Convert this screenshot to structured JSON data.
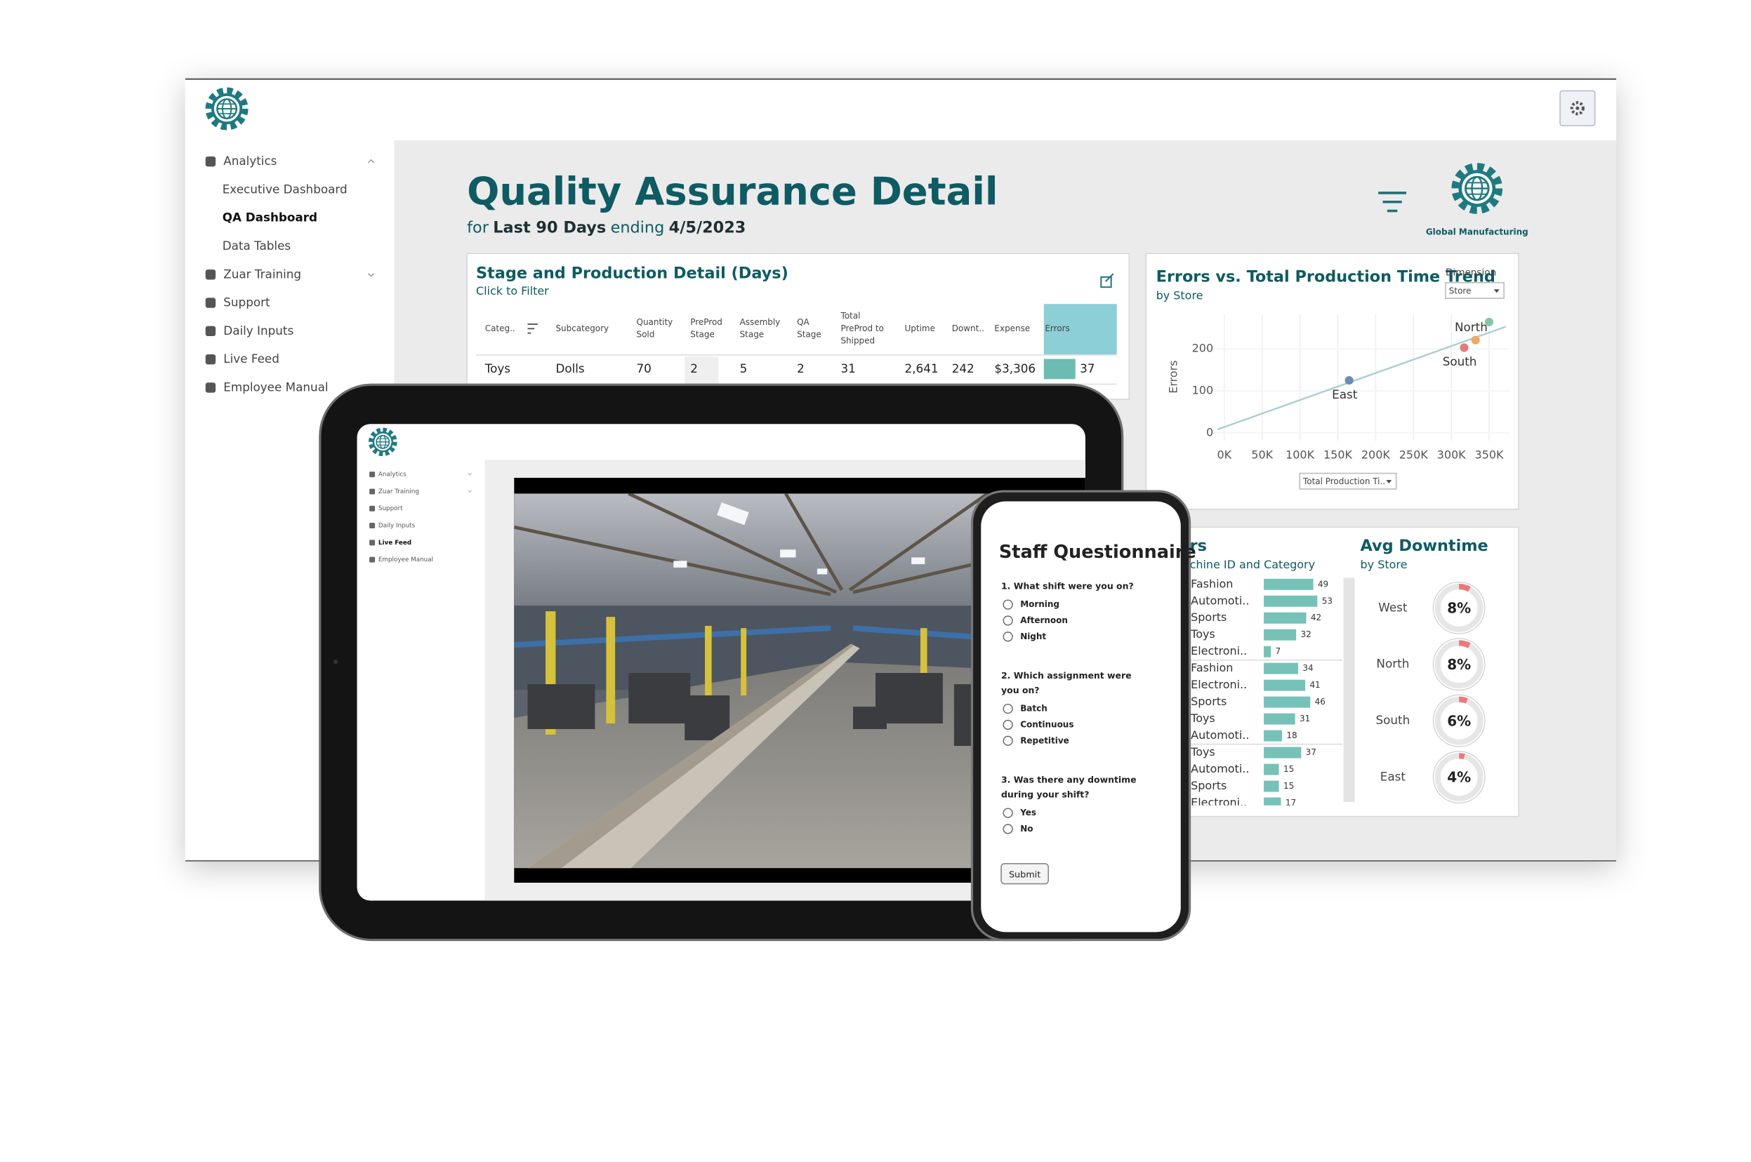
{
  "desktop": {
    "sidebar": [
      "Analytics",
      "Executive Dashboard",
      "QA Dashboard",
      "Data Tables",
      "Zuar Training",
      "Support",
      "Daily Inputs",
      "Live Feed",
      "Employee Manual"
    ],
    "title": "Quality Assurance Detail",
    "subtitle": {
      "prefix": "for",
      "period": "Last 90 Days",
      "middle": "ending",
      "date": "4/5/2023"
    },
    "brand": "Global Manufacturing",
    "table": {
      "title": "Stage and Production Detail (Days)",
      "subtitle": "Click to Filter",
      "columns": [
        [
          "Categ.."
        ],
        [
          "Subcategory"
        ],
        [
          "Quantity",
          "Sold"
        ],
        [
          "PreProd",
          "Stage"
        ],
        [
          "Assembly",
          "Stage"
        ],
        [
          "QA",
          "Stage"
        ],
        [
          "Total",
          "PreProd to",
          "Shipped"
        ],
        [
          "Uptime"
        ],
        [
          "Downt.."
        ],
        [
          "Expense"
        ],
        [
          "Errors"
        ]
      ],
      "rows": [
        [
          "Toys",
          "Dolls",
          70,
          2,
          5,
          2,
          31,
          "2,641",
          242,
          "$3,306",
          37
        ]
      ],
      "bar_color": "#6cbcb3"
    },
    "scatter": {
      "type": "scatter",
      "title": "Errors vs. Total Production Time Trend",
      "subtitle": "by Store",
      "dimension_label": "Dimension",
      "dimension": "Store",
      "y_label": "Errors",
      "x_selector": "Total Production Ti..",
      "xlim": [
        -19000,
        377000
      ],
      "ylim": [
        -19,
        283
      ],
      "xticks": [
        {
          "value": 0,
          "label": "0K"
        },
        {
          "value": 50000,
          "label": "50K"
        },
        {
          "value": 100000,
          "label": "100K"
        },
        {
          "value": 150000,
          "label": "150K"
        },
        {
          "value": 200000,
          "label": "200K"
        },
        {
          "value": 250000,
          "label": "250K"
        },
        {
          "value": 300000,
          "label": "300K"
        },
        {
          "value": 350000,
          "label": "350K"
        }
      ],
      "yticks": [
        0,
        100,
        200
      ],
      "grid": true,
      "x": [
        165000,
        317000,
        332000,
        350000
      ],
      "y": [
        125,
        203,
        221,
        264
      ],
      "labels": [
        "East",
        "South",
        null,
        "North"
      ],
      "colors": [
        "#6b8db3",
        "#e47b78",
        "#f0a862",
        "#86c4a9"
      ],
      "trend": {
        "x": [
          -9000,
          372000
        ],
        "y": [
          8,
          253
        ],
        "color": "#a9cfcf"
      }
    },
    "bars": {
      "type": "bar",
      "title": "rs",
      "subtitle": "chine ID and Category",
      "categories": [
        "Fashion",
        "Automoti..",
        "Sports",
        "Toys",
        "Electroni..",
        "Fashion",
        "Electroni..",
        "Sports",
        "Toys",
        "Automoti..",
        "Toys",
        "Automoti..",
        "Sports",
        "Electroni.."
      ],
      "values": [
        49,
        53,
        42,
        32,
        7,
        34,
        41,
        46,
        31,
        18,
        37,
        15,
        15,
        17
      ],
      "xlim": [
        0,
        80
      ],
      "color": "#76c2b8"
    },
    "downtime": {
      "type": "donut",
      "title": "Avg Downtime",
      "subtitle": "by Store",
      "categories": [
        "West",
        "North",
        "South",
        "East"
      ],
      "values": [
        8,
        8,
        6,
        4
      ],
      "value_labels": [
        "8%",
        "8%",
        "6%",
        "4%"
      ],
      "color": "#e9797a"
    }
  },
  "tablet": {
    "sidebar": [
      "Analytics",
      "Zuar Training",
      "Support",
      "Daily Inputs",
      "Live Feed",
      "Employee Manual"
    ]
  },
  "phone": {
    "title": "Staff Questionnaire",
    "questions": [
      {
        "lines": [
          "1. What shift were you on?"
        ],
        "options": [
          "Morning",
          "Afternoon",
          "Night"
        ]
      },
      {
        "lines": [
          "2. Which assignment were",
          "you on?"
        ],
        "options": [
          "Batch",
          "Continuous",
          "Repetitive"
        ]
      },
      {
        "lines": [
          "3. Was there any downtime",
          "during your shift?"
        ],
        "options": [
          "Yes",
          "No"
        ]
      }
    ],
    "submit": "Submit"
  }
}
